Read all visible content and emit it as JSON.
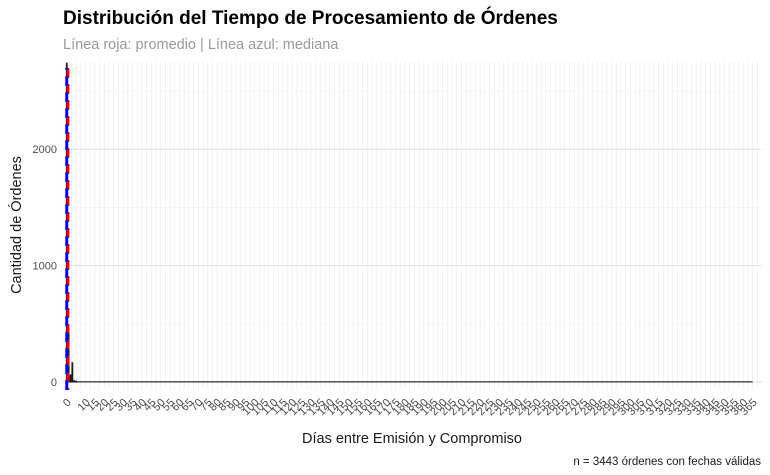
{
  "chart_data": {
    "type": "bar",
    "title": "Distribución del Tiempo de Procesamiento de Órdenes",
    "subtitle": "Línea roja: promedio | Línea azul: mediana",
    "xlabel": "Días entre Emisión y Compromiso",
    "ylabel": "Cantidad de Órdenes",
    "caption": "n = 3443 órdenes con fechas válidas",
    "xlim": [
      -2,
      370
    ],
    "ylim": [
      -70,
      2750
    ],
    "y_ticks": [
      0,
      1000,
      2000
    ],
    "x_ticks": [
      "0",
      "10",
      "15",
      "20",
      "25",
      "30",
      "35",
      "40",
      "45",
      "50",
      "55",
      "60",
      "65",
      "70",
      "75",
      "80",
      "85",
      "90",
      "95",
      "100",
      "105",
      "110",
      "115",
      "120",
      "125",
      "130",
      "135",
      "140",
      "145",
      "150",
      "155",
      "160",
      "165",
      "170",
      "175",
      "180",
      "185",
      "190",
      "195",
      "200",
      "205",
      "210",
      "215",
      "220",
      "225",
      "230",
      "235",
      "240",
      "245",
      "250",
      "255",
      "260",
      "265",
      "270",
      "275",
      "280",
      "285",
      "290",
      "295",
      "300",
      "305",
      "310",
      "315",
      "320",
      "325",
      "330",
      "335",
      "340",
      "345",
      "350",
      "355",
      "360",
      "365"
    ],
    "x_tick_positions": [
      0,
      10,
      15,
      20,
      25,
      30,
      35,
      40,
      45,
      50,
      55,
      60,
      65,
      70,
      75,
      80,
      85,
      90,
      95,
      100,
      105,
      110,
      115,
      120,
      125,
      130,
      135,
      140,
      145,
      150,
      155,
      160,
      165,
      170,
      175,
      180,
      185,
      190,
      195,
      200,
      205,
      210,
      215,
      220,
      225,
      230,
      235,
      240,
      245,
      250,
      255,
      260,
      265,
      270,
      275,
      280,
      285,
      290,
      295,
      300,
      305,
      310,
      315,
      320,
      325,
      330,
      335,
      340,
      345,
      350,
      355,
      360,
      365
    ],
    "bars": [
      {
        "x": 0,
        "value": 2740
      },
      {
        "x": 1,
        "value": 460
      },
      {
        "x": 2,
        "value": 60
      },
      {
        "x": 3,
        "value": 165
      },
      {
        "x": 4,
        "value": 10
      },
      {
        "x": 5,
        "value": 5
      }
    ],
    "mean": 0.6,
    "median": 0,
    "mean_color": "#ff0000",
    "median_color": "#0000ff",
    "bar_fill": "#d9a441",
    "bar_outline": "#000000"
  }
}
